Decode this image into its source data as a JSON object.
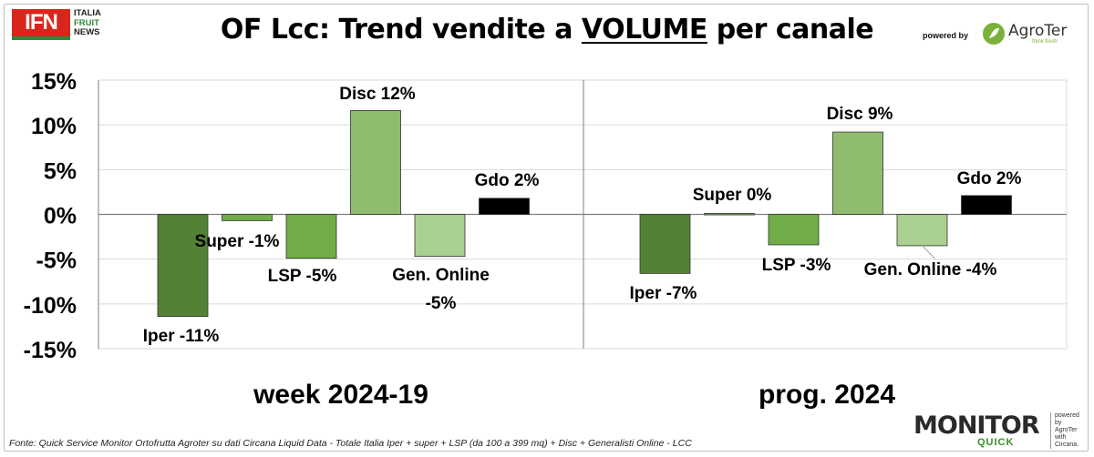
{
  "header": {
    "logo_ifn": "IFN",
    "logo_lines": [
      "ITALIA",
      "FRUIT",
      "NEWS"
    ],
    "title_pre": "OF Lcc: Trend vendite a ",
    "title_underlined": "VOLUME",
    "title_post": " per canale",
    "powered_by": "powered by",
    "agroter": "AgroTer",
    "agroter_tagline": "think fresh"
  },
  "footer": {
    "source": "Fonte: Quick Service Monitor Ortofrutta Agroter su dati Circana Liquid Data - Totale Italia Iper + super + LSP (da 100 a 399 mq) + Disc + Generalisti Online - LCC",
    "monitor": "MONITOR",
    "quick": "QUICK",
    "side_lines": [
      "powered by",
      "AgroTer",
      "with",
      "Circana."
    ]
  },
  "chart_data": {
    "type": "bar",
    "ylim": [
      -15,
      15
    ],
    "yticks": [
      15,
      10,
      5,
      0,
      -5,
      -10,
      -15
    ],
    "ytick_labels": [
      "15%",
      "10%",
      "5%",
      "0%",
      "-5%",
      "-10%",
      "-15%"
    ],
    "grid": true,
    "colors": {
      "Iper": "#538135",
      "Super": "#70ad47",
      "LSP": "#70ad47",
      "Disc": "#8fbc6f",
      "Gen. Online": "#a9d08e",
      "Gdo": "#000000",
      "grid": "#d9d9d9",
      "axis": "#808080"
    },
    "panels": [
      {
        "label": "week 2024-19",
        "bars": [
          {
            "category": "Iper",
            "value": -11.4,
            "label": "Iper -11%"
          },
          {
            "category": "Super",
            "value": -0.7,
            "label": "Super -1%"
          },
          {
            "category": "LSP",
            "value": -4.9,
            "label": "LSP -5%"
          },
          {
            "category": "Disc",
            "value": 11.6,
            "label": "Disc 12%"
          },
          {
            "category": "Gen. Online",
            "value": -4.7,
            "label": "Gen. Online\n-5%"
          },
          {
            "category": "Gdo",
            "value": 1.8,
            "label": "Gdo 2%"
          }
        ]
      },
      {
        "label": "prog. 2024",
        "bars": [
          {
            "category": "Iper",
            "value": -6.6,
            "label": "Iper -7%"
          },
          {
            "category": "Super",
            "value": 0.1,
            "label": "Super 0%"
          },
          {
            "category": "LSP",
            "value": -3.4,
            "label": "LSP -3%"
          },
          {
            "category": "Disc",
            "value": 9.2,
            "label": "Disc 9%"
          },
          {
            "category": "Gen. Online",
            "value": -3.5,
            "label": "Gen. Online -4%"
          },
          {
            "category": "Gdo",
            "value": 2.1,
            "label": "Gdo 2%"
          }
        ]
      }
    ]
  }
}
